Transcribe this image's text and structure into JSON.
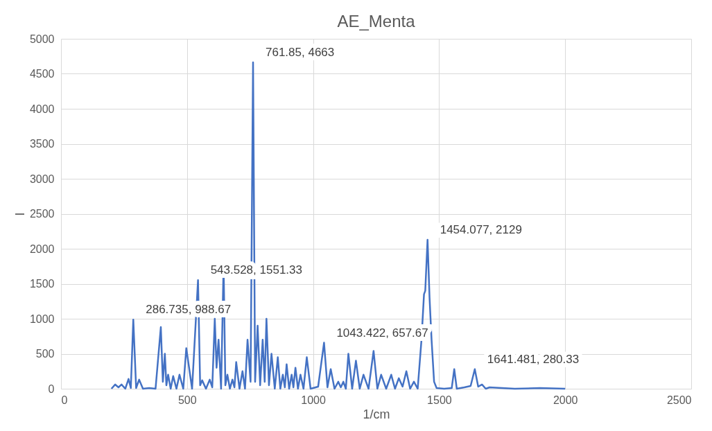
{
  "chart_data": {
    "type": "line",
    "title": "AE_Menta",
    "xlabel": "1/cm",
    "ylabel": "I",
    "xlim": [
      0,
      2500
    ],
    "xticks": [
      0,
      500,
      1000,
      1500,
      2000,
      2500
    ],
    "ylim": [
      0,
      5000
    ],
    "yticks": [
      0,
      500,
      1000,
      1500,
      2000,
      2500,
      3000,
      3500,
      4000,
      4500,
      5000
    ],
    "grid": true,
    "marker": "none",
    "line_style": "solid",
    "series": [
      {
        "color": "#4472c4",
        "x": [
          200,
          215,
          228,
          240,
          255,
          268,
          277,
          286.735,
          298,
          310,
          325,
          350,
          375,
          396,
          404,
          412,
          418,
          425,
          435,
          445,
          458,
          470,
          485,
          497,
          520,
          543.528,
          552,
          560,
          575,
          590,
          600,
          610,
          617,
          625,
          635,
          645,
          652,
          660,
          670,
          680,
          688,
          695,
          708,
          720,
          730,
          740,
          752,
          761.85,
          770,
          780,
          790,
          800,
          808,
          815,
          825,
          835,
          848,
          860,
          870,
          880,
          888,
          895,
          905,
          915,
          922,
          930,
          940,
          950,
          962,
          975,
          990,
          1020,
          1043.422,
          1057,
          1070,
          1085,
          1100,
          1110,
          1120,
          1130,
          1140,
          1155,
          1170,
          1185,
          1200,
          1220,
          1240,
          1255,
          1270,
          1290,
          1310,
          1325,
          1340,
          1355,
          1370,
          1385,
          1400,
          1415,
          1430,
          1440,
          1445,
          1454.077,
          1462,
          1470,
          1480,
          1490,
          1520,
          1550,
          1560,
          1570,
          1600,
          1625,
          1641.481,
          1655,
          1670,
          1685,
          1700,
          1800,
          1900,
          2000
        ],
        "values": [
          0,
          60,
          20,
          60,
          0,
          140,
          10,
          988.67,
          10,
          130,
          0,
          10,
          0,
          880,
          100,
          500,
          50,
          200,
          0,
          180,
          0,
          200,
          0,
          580,
          0,
          1551.33,
          50,
          120,
          0,
          130,
          20,
          1000,
          300,
          700,
          0,
          1780,
          50,
          200,
          0,
          130,
          20,
          380,
          0,
          250,
          0,
          700,
          100,
          4663,
          100,
          900,
          50,
          700,
          100,
          1000,
          50,
          500,
          0,
          450,
          0,
          200,
          20,
          350,
          0,
          200,
          20,
          300,
          0,
          200,
          0,
          450,
          0,
          30,
          657.67,
          20,
          280,
          0,
          100,
          20,
          100,
          0,
          500,
          0,
          400,
          0,
          200,
          0,
          540,
          0,
          200,
          0,
          200,
          0,
          150,
          30,
          250,
          0,
          100,
          0,
          700,
          1350,
          1400,
          2129,
          1300,
          700,
          100,
          10,
          0,
          10,
          280,
          0,
          20,
          40,
          280.33,
          30,
          60,
          0,
          20,
          0,
          10,
          0
        ]
      }
    ],
    "annotations": [
      {
        "text": "286.735, 988.67",
        "x": 286.735,
        "y": 988.67
      },
      {
        "text": "543.528, 1551.33",
        "x": 543.528,
        "y": 1551.33
      },
      {
        "text": "761.85, 4663",
        "x": 761.85,
        "y": 4663
      },
      {
        "text": "1043.422, 657.67",
        "x": 1043.422,
        "y": 657.67
      },
      {
        "text": "1454.077, 2129",
        "x": 1454.077,
        "y": 2129
      },
      {
        "text": "1641.481, 280.33",
        "x": 1641.481,
        "y": 280.33
      }
    ]
  }
}
